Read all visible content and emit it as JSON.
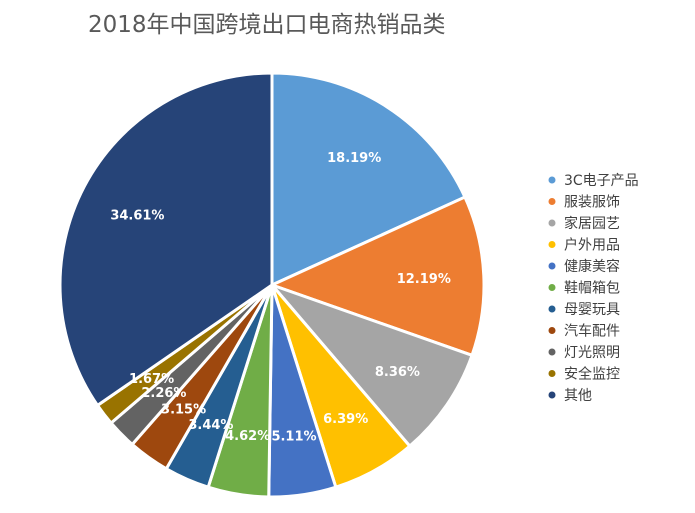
{
  "chart_data": {
    "type": "pie",
    "title": "2018年中国跨境出口电商热销品类",
    "categories": [
      "3C电子产品",
      "服装服饰",
      "家居园艺",
      "户外用品",
      "健康美容",
      "鞋帽箱包",
      "母婴玩具",
      "汽车配件",
      "灯光照明",
      "安全监控",
      "其他"
    ],
    "values": [
      18.19,
      12.19,
      8.36,
      6.39,
      5.11,
      4.62,
      3.44,
      3.15,
      2.26,
      1.67,
      34.61
    ],
    "labels": [
      "18.19%",
      "12.19%",
      "8.36%",
      "6.39%",
      "5.11%",
      "4.62%",
      "3.44%",
      "3.15%",
      "2.26%",
      "1.67%",
      "34.61%"
    ],
    "colors": [
      "#5b9bd5",
      "#ed7d31",
      "#a5a5a5",
      "#ffc000",
      "#4472c4",
      "#70ad47",
      "#255e91",
      "#9e480e",
      "#636363",
      "#997300",
      "#264478"
    ],
    "unit": "%",
    "legend_position": "right",
    "start_angle": "top, clockwise"
  }
}
